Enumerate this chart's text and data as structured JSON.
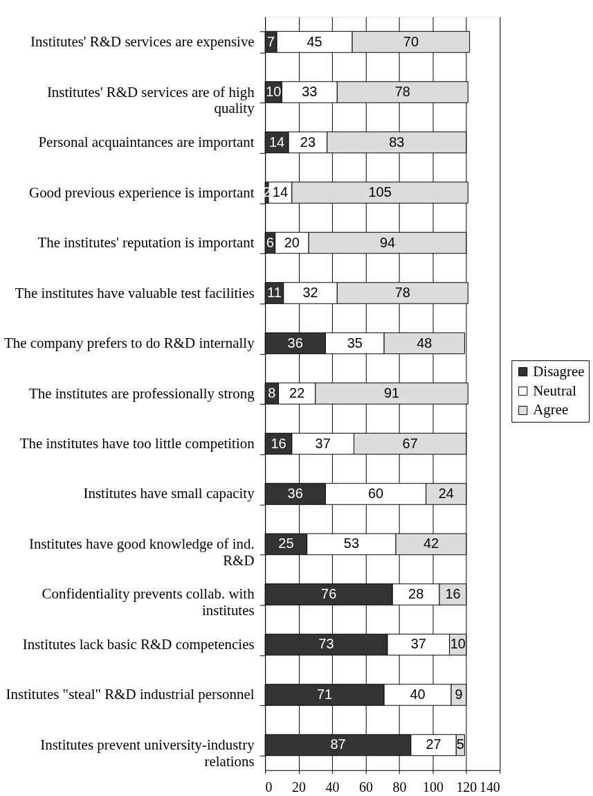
{
  "chart_data": {
    "type": "bar",
    "orientation": "horizontal",
    "stacked": true,
    "categories": [
      "Institutes' R&D services are expensive",
      "Institutes' R&D services are of high quality",
      "Personal acquaintances are important",
      "Good previous experience is important",
      "The institutes' reputation is important",
      "The institutes have valuable test facilities",
      "The company prefers to do R&D internally",
      "The institutes are professionally strong",
      "The institutes have too little competition",
      "Institutes have small capacity",
      "Institutes have good knowledge of ind. R&D",
      "Confidentiality prevents collab. with institutes",
      "Institutes lack basic R&D competencies",
      "Institutes \"steal\" R&D industrial personnel",
      "Institutes prevent university-industry relations"
    ],
    "series": [
      {
        "name": "Disagree",
        "color": "#333333",
        "values": [
          7,
          10,
          14,
          2,
          6,
          11,
          36,
          8,
          16,
          36,
          25,
          76,
          73,
          71,
          87
        ]
      },
      {
        "name": "Neutral",
        "color": "#ffffff",
        "values": [
          45,
          33,
          23,
          14,
          20,
          32,
          35,
          22,
          37,
          60,
          53,
          28,
          37,
          40,
          27
        ]
      },
      {
        "name": "Agree",
        "color": "#dcdcdc",
        "values": [
          70,
          78,
          83,
          105,
          94,
          78,
          48,
          91,
          67,
          24,
          42,
          16,
          10,
          9,
          5
        ]
      }
    ],
    "xlim": [
      0,
      140
    ],
    "xticks": [
      0,
      20,
      40,
      60,
      80,
      100,
      120,
      140
    ],
    "grid": "x",
    "legend": "right",
    "data_labels": true
  }
}
